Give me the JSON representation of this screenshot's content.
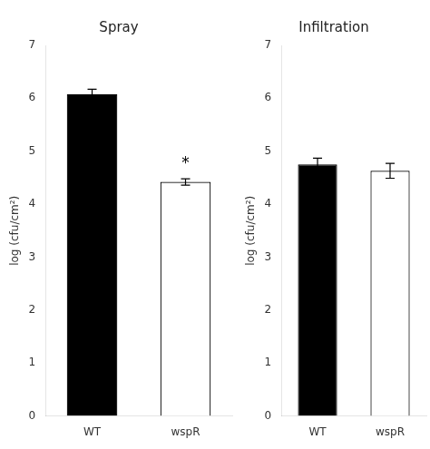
{
  "chart_data": [
    {
      "type": "bar",
      "title": "Spray",
      "categories": [
        "WT",
        "wspR"
      ],
      "values": [
        6.08,
        4.42
      ],
      "errors": [
        0.09,
        0.06
      ],
      "colors": [
        "black",
        "white"
      ],
      "ylabel": "log (cfu/cm²)",
      "ylim": [
        0,
        7
      ],
      "yticks": [
        0,
        1,
        2,
        3,
        4,
        5,
        6,
        7
      ],
      "grid": false,
      "annotations": [
        {
          "text": "*",
          "x": "wspR",
          "y": 4.68
        }
      ]
    },
    {
      "type": "bar",
      "title": "Infiltration",
      "categories": [
        "WT",
        "wspR"
      ],
      "values": [
        4.75,
        4.63
      ],
      "errors": [
        0.12,
        0.14
      ],
      "colors": [
        "black",
        "white"
      ],
      "ylabel": "log (cfu/cm²)",
      "ylim": [
        0,
        7
      ],
      "yticks": [
        0,
        1,
        2,
        3,
        4,
        5,
        6,
        7
      ],
      "grid": false
    }
  ]
}
